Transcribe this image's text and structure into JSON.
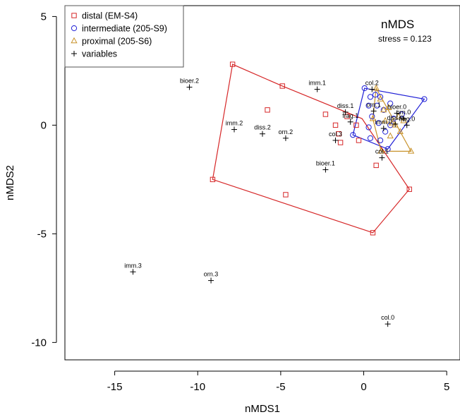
{
  "chart_data": {
    "type": "scatter",
    "title": "nMDS",
    "subtitle": "stress = 0.123",
    "xlabel": "nMDS1",
    "ylabel": "nMDS2",
    "xlim": [
      -18,
      5.8
    ],
    "ylim": [
      -10.8,
      5.5
    ],
    "x_ticks": [
      -15,
      -10,
      -5,
      0,
      5
    ],
    "y_ticks": [
      -10,
      -5,
      0,
      5
    ],
    "grid": false,
    "legend_position": "top-left",
    "groups": [
      {
        "name": "distal (EM-S4)",
        "marker": "square",
        "color": "#d62728",
        "hull": [
          [
            -7.9,
            2.8
          ],
          [
            -9.1,
            -2.5
          ],
          [
            0.55,
            -4.95
          ],
          [
            2.75,
            -2.95
          ],
          [
            -0.1,
            0.3
          ],
          [
            -4.9,
            1.8
          ]
        ],
        "points": [
          [
            -7.9,
            2.8
          ],
          [
            -9.1,
            -2.5
          ],
          [
            0.55,
            -4.95
          ],
          [
            2.75,
            -2.95
          ],
          [
            -4.9,
            1.8
          ],
          [
            -5.8,
            0.7
          ],
          [
            -4.7,
            -3.2
          ],
          [
            -2.3,
            0.5
          ],
          [
            -1.7,
            0.0
          ],
          [
            -1.5,
            -0.4
          ],
          [
            -1.4,
            -0.8
          ],
          [
            -1.0,
            0.4
          ],
          [
            -0.3,
            -0.7
          ],
          [
            -0.45,
            0.0
          ],
          [
            0.75,
            -1.85
          ]
        ]
      },
      {
        "name": "intermediate (205-S9)",
        "marker": "circle",
        "color": "#1f1fd6",
        "hull": [
          [
            0.05,
            1.7
          ],
          [
            3.65,
            1.2
          ],
          [
            1.45,
            -1.1
          ],
          [
            -0.65,
            -0.45
          ]
        ],
        "points": [
          [
            0.05,
            1.7
          ],
          [
            3.65,
            1.2
          ],
          [
            1.45,
            -1.1
          ],
          [
            -0.65,
            -0.45
          ],
          [
            0.4,
            1.3
          ],
          [
            0.7,
            1.4
          ],
          [
            1.0,
            1.3
          ],
          [
            0.3,
            0.9
          ],
          [
            0.8,
            0.9
          ],
          [
            1.6,
            1.0
          ],
          [
            1.2,
            0.7
          ],
          [
            0.5,
            0.4
          ],
          [
            0.9,
            0.1
          ],
          [
            1.8,
            0.3
          ],
          [
            2.3,
            0.5
          ],
          [
            0.3,
            -0.1
          ],
          [
            1.3,
            -0.3
          ],
          [
            0.4,
            -0.6
          ],
          [
            1.0,
            -0.7
          ],
          [
            1.6,
            0.0
          ]
        ]
      },
      {
        "name": "proximal (205-S6)",
        "marker": "triangle",
        "color": "#c8922a",
        "hull": [
          [
            0.75,
            1.7
          ],
          [
            2.85,
            -1.2
          ],
          [
            1.05,
            -1.2
          ],
          [
            0.55,
            0.3
          ]
        ],
        "points": [
          [
            0.75,
            1.7
          ],
          [
            2.85,
            -1.2
          ],
          [
            1.05,
            -1.2
          ],
          [
            0.55,
            0.3
          ],
          [
            1.0,
            1.2
          ],
          [
            1.2,
            0.7
          ],
          [
            1.5,
            0.8
          ],
          [
            1.3,
            0.2
          ],
          [
            1.7,
            0.1
          ],
          [
            2.1,
            0.4
          ],
          [
            1.9,
            0.0
          ],
          [
            2.4,
            0.2
          ],
          [
            2.2,
            -0.3
          ],
          [
            1.6,
            -0.5
          ]
        ]
      }
    ],
    "variables": {
      "name": "variables",
      "marker": "plus",
      "color": "#000000",
      "points": [
        {
          "label": "bioer.2",
          "x": -10.5,
          "y": 1.75
        },
        {
          "label": "imm.2",
          "x": -7.8,
          "y": -0.2
        },
        {
          "label": "diss.2",
          "x": -6.1,
          "y": -0.4
        },
        {
          "label": "orn.2",
          "x": -4.7,
          "y": -0.6
        },
        {
          "label": "imm.1",
          "x": -2.8,
          "y": 1.65
        },
        {
          "label": "diss.1",
          "x": -1.1,
          "y": 0.6
        },
        {
          "label": "frag.1",
          "x": -0.8,
          "y": 0.15
        },
        {
          "label": "col.3",
          "x": -1.7,
          "y": -0.7
        },
        {
          "label": "bioer.1",
          "x": -2.3,
          "y": -2.05
        },
        {
          "label": "col.2",
          "x": 0.5,
          "y": 1.65
        },
        {
          "label": "bioer.0",
          "x": 2.0,
          "y": 0.55
        },
        {
          "label": "orn.1",
          "x": 0.6,
          "y": 0.65
        },
        {
          "label": "orn.0",
          "x": 2.4,
          "y": 0.3
        },
        {
          "label": "diss.0",
          "x": 1.9,
          "y": 0.05
        },
        {
          "label": "frag.0",
          "x": 2.6,
          "y": 0.0
        },
        {
          "label": "imm.0",
          "x": 1.2,
          "y": -0.15
        },
        {
          "label": "col.1",
          "x": 1.1,
          "y": -1.5
        },
        {
          "label": "imm.3",
          "x": -13.9,
          "y": -6.75
        },
        {
          "label": "orn.3",
          "x": -9.2,
          "y": -7.15
        },
        {
          "label": "col.0",
          "x": 1.45,
          "y": -9.15
        }
      ]
    }
  }
}
